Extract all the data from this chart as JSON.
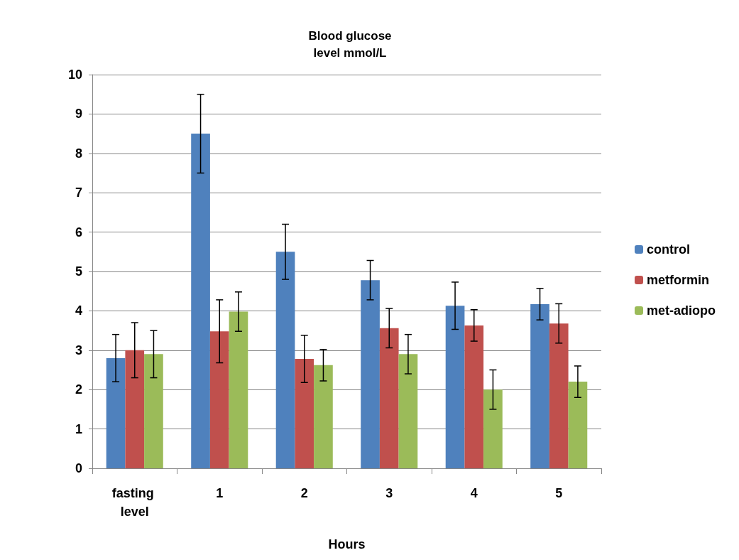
{
  "chart_data": {
    "type": "bar",
    "title": "Blood glucose\nlevel mmol/L",
    "xlabel": "Hours",
    "categories": [
      "fasting level",
      "1",
      "2",
      "3",
      "4",
      "5"
    ],
    "series": [
      {
        "name": "control",
        "color": "#4f81bd",
        "values": [
          2.8,
          8.5,
          5.5,
          4.78,
          4.13,
          4.17
        ],
        "errors": [
          0.6,
          1.0,
          0.7,
          0.5,
          0.6,
          0.4
        ]
      },
      {
        "name": "metformin",
        "color": "#c0504d",
        "values": [
          3.0,
          3.48,
          2.78,
          3.56,
          3.63,
          3.68
        ],
        "errors": [
          0.7,
          0.8,
          0.6,
          0.5,
          0.4,
          0.5
        ]
      },
      {
        "name": "met-adiopo",
        "color": "#9bbb59",
        "values": [
          2.9,
          3.98,
          2.62,
          2.9,
          2.0,
          2.2
        ],
        "errors": [
          0.6,
          0.5,
          0.4,
          0.5,
          0.5,
          0.4
        ]
      }
    ],
    "ylim": [
      0,
      10
    ],
    "yticks": [
      0,
      1,
      2,
      3,
      4,
      5,
      6,
      7,
      8,
      9,
      10
    ],
    "grid": "y",
    "legend": "right"
  }
}
